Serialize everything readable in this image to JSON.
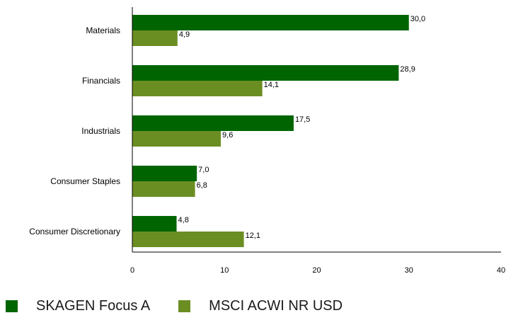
{
  "chart_data": {
    "type": "bar",
    "orientation": "horizontal",
    "categories": [
      "Materials",
      "Financials",
      "Industrials",
      "Consumer Staples",
      "Consumer Discretionary"
    ],
    "series": [
      {
        "name": "SKAGEN Focus A",
        "values": [
          30.0,
          28.9,
          17.5,
          7.0,
          4.8
        ],
        "labels": [
          "30,0",
          "28,9",
          "17,5",
          "7,0",
          "4,8"
        ],
        "color": "#006400"
      },
      {
        "name": "MSCI ACWI NR USD",
        "values": [
          4.9,
          14.1,
          9.6,
          6.8,
          12.1
        ],
        "labels": [
          "4,9",
          "14,1",
          "9,6",
          "6,8",
          "12,1"
        ],
        "color": "#6b8e23"
      }
    ],
    "xlim": [
      0,
      40
    ],
    "xticks": [
      "0",
      "10",
      "20",
      "30",
      "40"
    ],
    "grid": false,
    "legend_position": "bottom-left",
    "title": "",
    "xlabel": "",
    "ylabel": ""
  }
}
